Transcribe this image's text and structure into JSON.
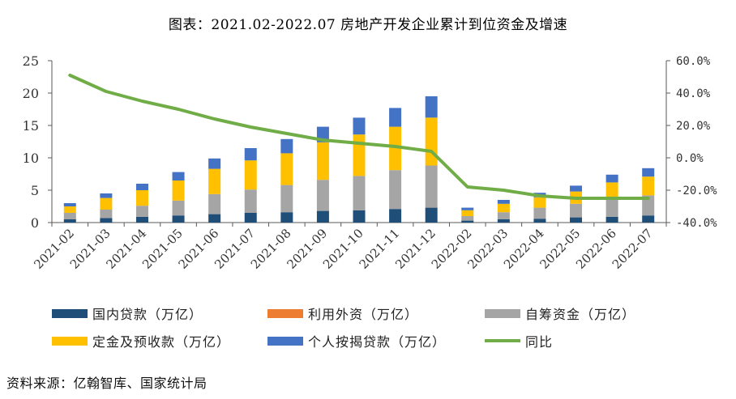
{
  "title": "图表：2021.02-2022.07 房地产开发企业累计到位资金及增速",
  "source": "资料来源：亿翰智库、国家统计局",
  "colors": {
    "domestic_loans": "#1f4e79",
    "foreign_capital": "#ed7d31",
    "self_raised": "#a5a5a5",
    "deposits": "#ffc000",
    "mortgages": "#4472c4",
    "yoy": "#70ad47",
    "axis": "#595959"
  },
  "legend": [
    {
      "key": "domestic_loans",
      "label": "国内贷款（万亿）",
      "kind": "box"
    },
    {
      "key": "foreign_capital",
      "label": "利用外资（万亿）",
      "kind": "box"
    },
    {
      "key": "self_raised",
      "label": "自筹资金（万亿）",
      "kind": "box"
    },
    {
      "key": "deposits",
      "label": "定金及预收款（万亿）",
      "kind": "box"
    },
    {
      "key": "mortgages",
      "label": "个人按揭贷款（万亿）",
      "kind": "box"
    },
    {
      "key": "yoy",
      "label": "同比",
      "kind": "line"
    }
  ],
  "chart_data": {
    "type": "bar",
    "stacked": true,
    "title": "图表：2021.02-2022.07 房地产开发企业累计到位资金及增速",
    "categories": [
      "2021-02",
      "2021-03",
      "2021-04",
      "2021-05",
      "2021-06",
      "2021-07",
      "2021-08",
      "2021-09",
      "2021-10",
      "2021-11",
      "2021-12",
      "2022-02",
      "2022-03",
      "2022-04",
      "2022-05",
      "2022-06",
      "2022-07"
    ],
    "series": [
      {
        "key": "domestic_loans",
        "name": "国内贷款（万亿）",
        "values": [
          0.5,
          0.7,
          0.9,
          1.1,
          1.3,
          1.5,
          1.6,
          1.8,
          1.9,
          2.1,
          2.3,
          0.3,
          0.5,
          0.6,
          0.8,
          0.9,
          1.1
        ]
      },
      {
        "key": "foreign_capital",
        "name": "利用外资（万亿）",
        "values": [
          0.0,
          0.0,
          0.0,
          0.0,
          0.0,
          0.0,
          0.0,
          0.0,
          0.0,
          0.0,
          0.01,
          0.0,
          0.0,
          0.0,
          0.0,
          0.0,
          0.0
        ]
      },
      {
        "key": "self_raised",
        "name": "自筹资金（万亿）",
        "values": [
          1.0,
          1.3,
          1.7,
          2.3,
          3.1,
          3.6,
          4.2,
          4.8,
          5.3,
          6.0,
          6.5,
          0.7,
          1.1,
          1.7,
          2.1,
          2.6,
          3.1
        ]
      },
      {
        "key": "deposits",
        "name": "定金及预收款（万亿）",
        "values": [
          1.0,
          1.8,
          2.4,
          3.1,
          3.9,
          4.5,
          4.9,
          5.8,
          6.4,
          6.7,
          7.4,
          0.9,
          1.3,
          1.6,
          1.9,
          2.7,
          2.9
        ]
      },
      {
        "key": "mortgages",
        "name": "个人按揭贷款（万亿）",
        "values": [
          0.5,
          0.7,
          1.0,
          1.3,
          1.6,
          1.9,
          2.2,
          2.4,
          2.6,
          2.9,
          3.3,
          0.4,
          0.6,
          0.7,
          0.9,
          1.2,
          1.3
        ]
      },
      {
        "key": "yoy",
        "name": "同比",
        "axis": "right",
        "type": "line",
        "values": [
          51.0,
          41.0,
          35.0,
          30.0,
          24.0,
          19.0,
          15.0,
          11.0,
          9.0,
          7.0,
          4.0,
          -18.0,
          -20.0,
          -23.5,
          -25.0,
          -25.0,
          -25.0
        ]
      }
    ],
    "y_left": {
      "min": 0,
      "max": 25,
      "ticks": [
        "0",
        "5",
        "10",
        "15",
        "20",
        "25"
      ]
    },
    "y_right": {
      "min": -40,
      "max": 60,
      "ticks": [
        "-40.0%",
        "-20.0%",
        "0.0%",
        "20.0%",
        "40.0%",
        "60.0%"
      ]
    },
    "grid": false,
    "legend_position": "bottom"
  }
}
